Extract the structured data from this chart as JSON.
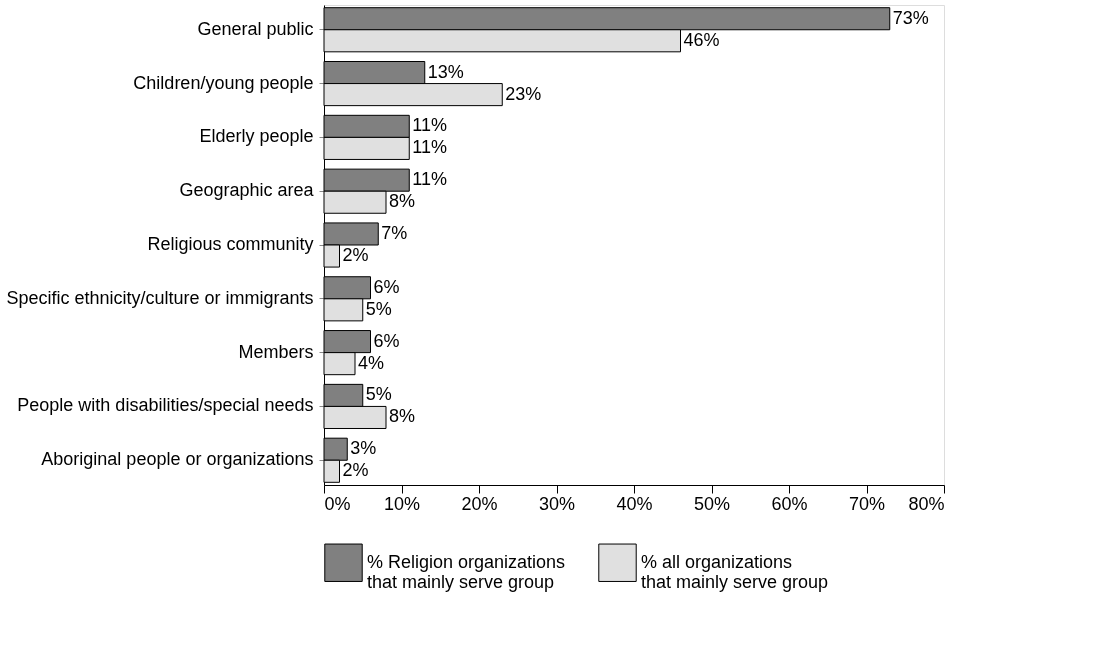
{
  "chart_data": {
    "type": "bar",
    "orientation": "horizontal",
    "categories": [
      "General public",
      "Children/young people",
      "Elderly people",
      "Geographic area",
      "Religious community",
      "Specific ethnicity/culture or immigrants",
      "Members",
      "People with disabilities/special needs",
      "Aboriginal people or organizations"
    ],
    "series": [
      {
        "name": "% Religion organizations that mainly serve group",
        "color": "#808080",
        "values": [
          73,
          13,
          11,
          11,
          7,
          6,
          6,
          5,
          3
        ],
        "value_labels": [
          "73%",
          "13%",
          "11%",
          "11%",
          "7%",
          "6%",
          "6%",
          "5%",
          "3%"
        ]
      },
      {
        "name": "% all organizations that mainly serve group",
        "color": "#e0e0e0",
        "values": [
          46,
          23,
          11,
          8,
          2,
          5,
          4,
          8,
          2
        ],
        "value_labels": [
          "46%",
          "23%",
          "11%",
          "8%",
          "2%",
          "5%",
          "4%",
          "8%",
          "2%"
        ]
      }
    ],
    "xlim": [
      0,
      80
    ],
    "xticks": [
      {
        "value": 0,
        "label": "0%"
      },
      {
        "value": 10,
        "label": "10%"
      },
      {
        "value": 20,
        "label": "20%"
      },
      {
        "value": 30,
        "label": "30%"
      },
      {
        "value": 40,
        "label": "40%"
      },
      {
        "value": 50,
        "label": "50%"
      },
      {
        "value": 60,
        "label": "60%"
      },
      {
        "value": 70,
        "label": "70%"
      },
      {
        "value": 80,
        "label": "80%"
      }
    ],
    "grid": false,
    "legend": "bottom"
  }
}
